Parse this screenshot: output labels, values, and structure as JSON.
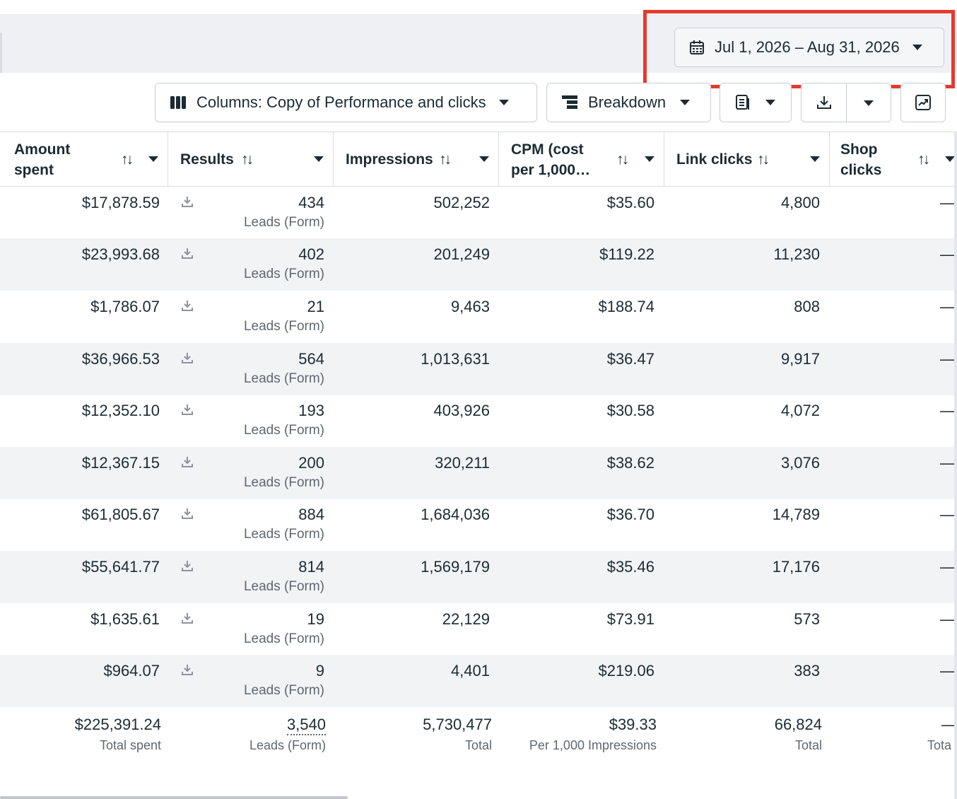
{
  "date_range": {
    "label": "Jul 1, 2026 – Aug 31, 2026"
  },
  "toolbar": {
    "columns_label": "Columns: Copy of Performance and clicks",
    "breakdown_label": "Breakdown"
  },
  "table": {
    "headers": [
      {
        "line1": "Amount",
        "line2": "spent"
      },
      {
        "line1": "Results",
        "line2": ""
      },
      {
        "line1": "Impressions",
        "line2": ""
      },
      {
        "line1": "CPM (cost",
        "line2": "per 1,000…"
      },
      {
        "line1": "Link clicks",
        "line2": ""
      },
      {
        "line1": "Shop",
        "line2": "clicks"
      }
    ],
    "rows": [
      {
        "amount": "$17,878.59",
        "results": "434",
        "results_type": "Leads (Form)",
        "impressions": "502,252",
        "cpm": "$35.60",
        "link_clicks": "4,800",
        "shop_clicks": "—"
      },
      {
        "amount": "$23,993.68",
        "results": "402",
        "results_type": "Leads (Form)",
        "impressions": "201,249",
        "cpm": "$119.22",
        "link_clicks": "11,230",
        "shop_clicks": "—"
      },
      {
        "amount": "$1,786.07",
        "results": "21",
        "results_type": "Leads (Form)",
        "impressions": "9,463",
        "cpm": "$188.74",
        "link_clicks": "808",
        "shop_clicks": "—"
      },
      {
        "amount": "$36,966.53",
        "results": "564",
        "results_type": "Leads (Form)",
        "impressions": "1,013,631",
        "cpm": "$36.47",
        "link_clicks": "9,917",
        "shop_clicks": "—"
      },
      {
        "amount": "$12,352.10",
        "results": "193",
        "results_type": "Leads (Form)",
        "impressions": "403,926",
        "cpm": "$30.58",
        "link_clicks": "4,072",
        "shop_clicks": "—"
      },
      {
        "amount": "$12,367.15",
        "results": "200",
        "results_type": "Leads (Form)",
        "impressions": "320,211",
        "cpm": "$38.62",
        "link_clicks": "3,076",
        "shop_clicks": "—"
      },
      {
        "amount": "$61,805.67",
        "results": "884",
        "results_type": "Leads (Form)",
        "impressions": "1,684,036",
        "cpm": "$36.70",
        "link_clicks": "14,789",
        "shop_clicks": "—"
      },
      {
        "amount": "$55,641.77",
        "results": "814",
        "results_type": "Leads (Form)",
        "impressions": "1,569,179",
        "cpm": "$35.46",
        "link_clicks": "17,176",
        "shop_clicks": "—"
      },
      {
        "amount": "$1,635.61",
        "results": "19",
        "results_type": "Leads (Form)",
        "impressions": "22,129",
        "cpm": "$73.91",
        "link_clicks": "573",
        "shop_clicks": "—"
      },
      {
        "amount": "$964.07",
        "results": "9",
        "results_type": "Leads (Form)",
        "impressions": "4,401",
        "cpm": "$219.06",
        "link_clicks": "383",
        "shop_clicks": "—"
      }
    ],
    "totals": {
      "amount": "$225,391.24",
      "amount_label": "Total spent",
      "results": "3,540",
      "results_label": "Leads (Form)",
      "impressions": "5,730,477",
      "impressions_label": "Total",
      "cpm": "$39.33",
      "cpm_label": "Per 1,000 Impressions",
      "link_clicks": "66,824",
      "link_clicks_label": "Total",
      "shop_clicks": "—",
      "shop_clicks_label": "Tota"
    }
  }
}
